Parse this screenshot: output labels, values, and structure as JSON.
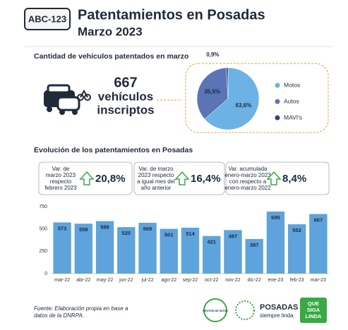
{
  "header": {
    "badge": "ABC-123",
    "title": "Patentamientos en Posadas",
    "subtitle": "Marzo 2023"
  },
  "section_1": {
    "title": "Cantidad de vehículos patentados en marzo"
  },
  "summary": {
    "value": "667",
    "label_lines": [
      "vehículos",
      "inscriptos"
    ]
  },
  "section_2": {
    "title": "Evolución de los patentamientos en Posadas"
  },
  "variations": [
    {
      "label_lines": [
        "Var. de",
        "marzo 2023",
        "respecto",
        "febrero 2023"
      ],
      "value": "20,8%"
    },
    {
      "label_lines": [
        "Var. de marzo",
        "2023 respecto",
        "a igual mes del",
        "año anterior"
      ],
      "value": "16,4%"
    },
    {
      "label_lines": [
        "Var. acumulada",
        "enero-marzo 2023",
        "con respecto a",
        "enero-marzo 2022"
      ],
      "value": "8,4%"
    }
  ],
  "footer": {
    "source_lines": [
      "Fuente: Elaboración propia en base a",
      "datos de la DNRPA."
    ],
    "logo_1": "GESTIÓN DE DATOS",
    "logo_2": "POSADAS",
    "logo_2_sub": "siempre linda",
    "logo_3_lines": [
      "QUE",
      "SIGA",
      "LINDA"
    ]
  },
  "chart_data": [
    {
      "type": "pie",
      "categories": [
        "Motos",
        "Autos",
        "MAVI's"
      ],
      "values": [
        63.6,
        35.5,
        0.9
      ],
      "value_labels": [
        "63,6%",
        "35,5%",
        "0,9%"
      ],
      "colors": [
        "#6cb2e4",
        "#5a74b6",
        "#34407f"
      ]
    },
    {
      "type": "bar",
      "categories": [
        "mar-22",
        "abr-22",
        "may-22",
        "jun-22",
        "jul-22",
        "ago-22",
        "sep-22",
        "oct-22",
        "nov-22",
        "dic-22",
        "ene-23",
        "feb-23",
        "mar-23"
      ],
      "values": [
        573,
        559,
        588,
        520,
        569,
        501,
        514,
        421,
        487,
        387,
        695,
        552,
        667
      ],
      "color": "#5ea3dc",
      "ylim": [
        0,
        750
      ],
      "yticks": [
        0,
        250,
        500,
        750
      ]
    }
  ]
}
